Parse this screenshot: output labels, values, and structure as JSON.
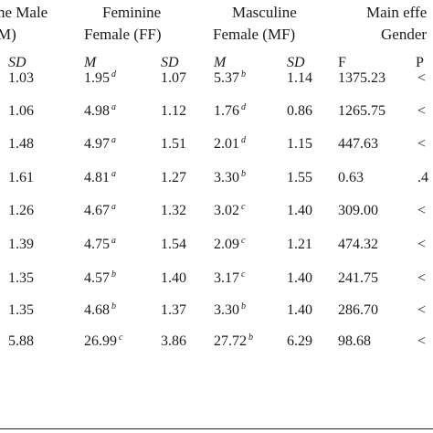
{
  "headers": {
    "g1_line1": "ne Male",
    "g1_line2": "M)",
    "g2_line1": "Feminine",
    "g2_line2": "Female (FF)",
    "g3_line1": "Masculine",
    "g3_line2": "Female (MF)",
    "g4_line1": "Main effe",
    "g4_line2": "Gender"
  },
  "subheaders": [
    "SD",
    "M",
    "SD",
    "M",
    "SD",
    "F",
    "P"
  ],
  "rows": [
    {
      "c1": "1.03",
      "c2": "1.95",
      "c2sup": "d",
      "c3": "1.07",
      "c4": "5.37",
      "c4sup": "b",
      "c5": "1.14",
      "c6": "1375.23",
      "c7": "<"
    },
    {
      "c1": "1.06",
      "c2": "4.98",
      "c2sup": "a",
      "c3": "1.12",
      "c4": "1.76",
      "c4sup": "d",
      "c5": "0.86",
      "c6": "1265.75",
      "c7": "<"
    },
    {
      "c1": "1.48",
      "c2": "4.97",
      "c2sup": "a",
      "c3": "1.51",
      "c4": "2.01",
      "c4sup": "d",
      "c5": "1.15",
      "c6": "447.63",
      "c7": "<"
    },
    {
      "c1": "1.61",
      "c2": "4.81",
      "c2sup": "a",
      "c3": "1.27",
      "c4": "3.30",
      "c4sup": "b",
      "c5": "1.55",
      "c6": "0.63",
      "c7": ".4"
    },
    {
      "c1": "1.26",
      "c2": "4.67",
      "c2sup": "a",
      "c3": "1.32",
      "c4": "3.02",
      "c4sup": "c",
      "c5": "1.40",
      "c6": "309.00",
      "c7": "<"
    },
    {
      "c1": "1.39",
      "c2": "4.75",
      "c2sup": "a",
      "c3": "1.54",
      "c4": "2.09",
      "c4sup": "c",
      "c5": "1.21",
      "c6": "474.32",
      "c7": "<"
    },
    {
      "c1": "1.35",
      "c2": "4.57",
      "c2sup": "b",
      "c3": "1.40",
      "c4": "3.17",
      "c4sup": "c",
      "c5": "1.40",
      "c6": "241.75",
      "c7": "<"
    },
    {
      "c1": "1.35",
      "c2": "4.68",
      "c2sup": "b",
      "c3": "1.37",
      "c4": "3.30",
      "c4sup": "b",
      "c5": "1.40",
      "c6": "286.70",
      "c7": "<"
    },
    {
      "c1": "5.88",
      "c2": "26.99",
      "c2sup": "c",
      "c3": "3.86",
      "c4": "27.72",
      "c4sup": "b",
      "c5": "6.29",
      "c6": "98.68",
      "c7": "<"
    }
  ]
}
